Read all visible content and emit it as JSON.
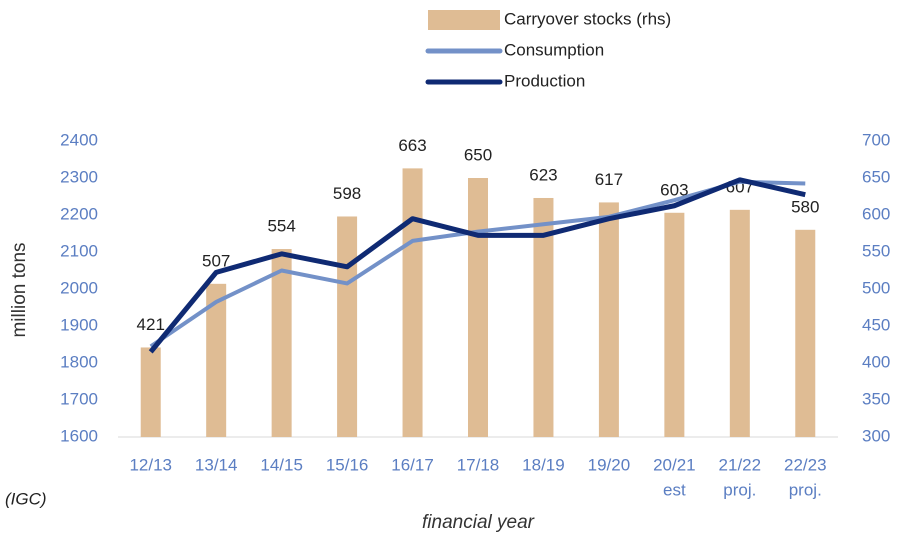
{
  "chart_data": {
    "type": "bar_line",
    "y_label": "million tons",
    "x_label": "financial year",
    "source": "(IGC)",
    "categories": [
      "12/13",
      "13/14",
      "14/15",
      "15/16",
      "16/17",
      "17/18",
      "18/19",
      "19/20",
      "20/21",
      "21/22",
      "22/23"
    ],
    "x_sublabels": [
      null,
      null,
      null,
      null,
      null,
      null,
      null,
      null,
      "est",
      "proj.",
      "proj."
    ],
    "series": [
      {
        "name": "Carryover stocks (rhs)",
        "color": "#dfbc94",
        "axis": "y2",
        "kind": "bar",
        "values": [
          421,
          507,
          554,
          598,
          663,
          650,
          623,
          617,
          603,
          607,
          580
        ]
      },
      {
        "name": "Consumption",
        "color": "#7391c8",
        "kind": "line",
        "values": [
          1845,
          1965,
          2050,
          2015,
          2130,
          2155,
          2175,
          2195,
          2240,
          2290,
          2285
        ]
      },
      {
        "name": "Production",
        "color": "#0f2a73",
        "kind": "line",
        "values": [
          1830,
          2045,
          2095,
          2060,
          2190,
          2145,
          2145,
          2190,
          2225,
          2295,
          2255
        ]
      }
    ],
    "ylim": [
      1600,
      2400
    ],
    "yticks": [
      1600,
      1700,
      1800,
      1900,
      2000,
      2100,
      2200,
      2300,
      2400
    ],
    "y2lim": [
      300,
      700
    ],
    "y2ticks": [
      300,
      350,
      400,
      450,
      500,
      550,
      600,
      650,
      700
    ]
  }
}
